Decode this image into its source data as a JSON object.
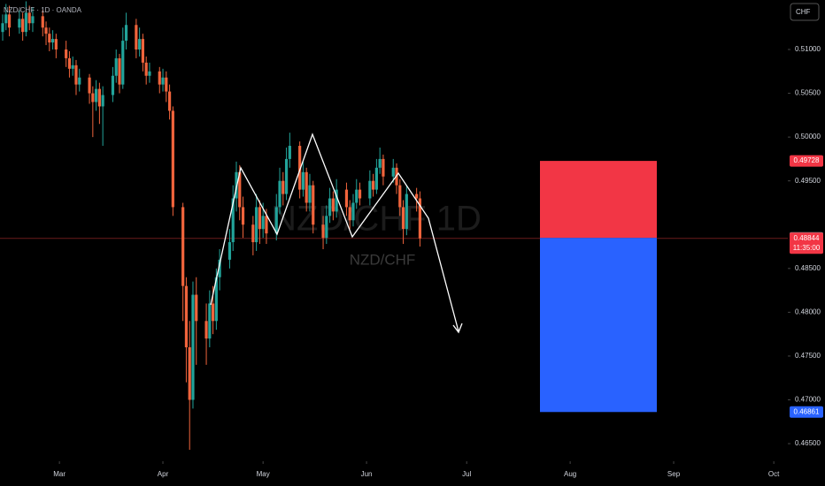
{
  "chart_data": {
    "type": "candlestick",
    "legend": "NZD/CHF · 1D · OANDA",
    "currency": "CHF",
    "watermark": "NZD/CHF 1D",
    "watermark_sub": "NZD/CHF",
    "up_color": "#22a39a",
    "down_color": "#f0643c",
    "xlim": [
      -17.8,
      218.2
    ],
    "xticks": [
      {
        "value": 0,
        "label": "Mar"
      },
      {
        "value": 31,
        "label": "Apr"
      },
      {
        "value": 61,
        "label": "May"
      },
      {
        "value": 92,
        "label": "Jun"
      },
      {
        "value": 122,
        "label": "Jul"
      },
      {
        "value": 153,
        "label": "Aug"
      },
      {
        "value": 184,
        "label": "Sep"
      },
      {
        "value": 214,
        "label": "Oct"
      }
    ],
    "ylim": [
      0.46319,
      0.51565
    ],
    "yticks": [
      {
        "value": 0.465,
        "label": "0.46500"
      },
      {
        "value": 0.47,
        "label": "0.47000"
      },
      {
        "value": 0.475,
        "label": "0.47500"
      },
      {
        "value": 0.48,
        "label": "0.48000"
      },
      {
        "value": 0.485,
        "label": "0.48500"
      },
      {
        "value": 0.495,
        "label": "0.49500"
      },
      {
        "value": 0.5,
        "label": "0.50000"
      },
      {
        "value": 0.505,
        "label": "0.50500"
      },
      {
        "value": 0.51,
        "label": "0.51000"
      }
    ],
    "grid": false,
    "x": [
      -17,
      -16,
      -15,
      -12,
      -11,
      -10,
      -9,
      -8,
      -5,
      -4,
      -3,
      -2,
      -1,
      2,
      3,
      4,
      5,
      6,
      9,
      10,
      11,
      12,
      13,
      16,
      17,
      18,
      19,
      20,
      23,
      24,
      25,
      26,
      27,
      30,
      31,
      32,
      33,
      34,
      37,
      38,
      39,
      40,
      41,
      44,
      45,
      46,
      47,
      48,
      51,
      52,
      53,
      54,
      55,
      58,
      59,
      60,
      61,
      62,
      65,
      66,
      67,
      68,
      69,
      72,
      73,
      74,
      75,
      76,
      79,
      80,
      81,
      82,
      83,
      86,
      87,
      88,
      89,
      90,
      93,
      94,
      95,
      96,
      97,
      100,
      101,
      102,
      103,
      104,
      107,
      108
    ],
    "open": [
      0.512,
      0.513,
      0.514,
      0.5125,
      0.5135,
      0.512,
      0.5142,
      0.513,
      0.5138,
      0.5125,
      0.5118,
      0.5108,
      0.5112,
      0.51,
      0.509,
      0.5078,
      0.5082,
      0.506,
      0.5068,
      0.505,
      0.504,
      0.5055,
      0.5035,
      0.5048,
      0.507,
      0.509,
      0.506,
      0.511,
      0.5128,
      0.51,
      0.5112,
      0.5085,
      0.507,
      0.5075,
      0.506,
      0.5068,
      0.5052,
      0.503,
      0.492,
      0.483,
      0.476,
      0.47,
      0.482,
      0.479,
      0.477,
      0.481,
      0.479,
      0.484,
      0.486,
      0.488,
      0.493,
      0.496,
      0.492,
      0.49,
      0.488,
      0.492,
      0.4895,
      0.491,
      0.489,
      0.492,
      0.495,
      0.4935,
      0.4975,
      0.499,
      0.494,
      0.496,
      0.4925,
      0.4945,
      0.49,
      0.4885,
      0.491,
      0.493,
      0.4915,
      0.494,
      0.492,
      0.4905,
      0.4925,
      0.494,
      0.493,
      0.495,
      0.494,
      0.4965,
      0.4975,
      0.4955,
      0.4965,
      0.4945,
      0.492,
      0.4895,
      0.4935,
      0.493
    ],
    "high": [
      0.514,
      0.5152,
      0.515,
      0.5145,
      0.5142,
      0.5155,
      0.515,
      0.5148,
      0.5145,
      0.5132,
      0.5125,
      0.5122,
      0.5118,
      0.511,
      0.5098,
      0.5092,
      0.5088,
      0.5078,
      0.5072,
      0.5058,
      0.5065,
      0.5062,
      0.5058,
      0.508,
      0.51,
      0.5095,
      0.5125,
      0.5142,
      0.5135,
      0.5125,
      0.5118,
      0.5092,
      0.5085,
      0.508,
      0.5078,
      0.5075,
      0.506,
      0.5035,
      0.4925,
      0.484,
      0.479,
      0.4835,
      0.484,
      0.481,
      0.4825,
      0.483,
      0.485,
      0.4872,
      0.4895,
      0.4945,
      0.4972,
      0.4968,
      0.4932,
      0.491,
      0.4935,
      0.4928,
      0.4925,
      0.4918,
      0.4935,
      0.4965,
      0.496,
      0.4988,
      0.5005,
      0.4995,
      0.4972,
      0.4965,
      0.4958,
      0.495,
      0.491,
      0.4922,
      0.4942,
      0.4938,
      0.4952,
      0.4948,
      0.4928,
      0.4935,
      0.4952,
      0.4948,
      0.4962,
      0.4958,
      0.4975,
      0.4988,
      0.498,
      0.4975,
      0.497,
      0.4952,
      0.4928,
      0.4945,
      0.4942,
      0.4938
    ],
    "low": [
      0.511,
      0.5122,
      0.5115,
      0.5118,
      0.511,
      0.5115,
      0.5122,
      0.512,
      0.5115,
      0.5105,
      0.5098,
      0.51,
      0.509,
      0.508,
      0.5068,
      0.507,
      0.5048,
      0.5052,
      0.5038,
      0.5,
      0.503,
      0.5015,
      0.499,
      0.504,
      0.5062,
      0.505,
      0.5055,
      0.51,
      0.509,
      0.5092,
      0.5075,
      0.506,
      0.5062,
      0.505,
      0.5052,
      0.504,
      0.502,
      0.491,
      0.479,
      0.472,
      0.4643,
      0.469,
      0.474,
      0.474,
      0.476,
      0.4775,
      0.478,
      0.4825,
      0.485,
      0.487,
      0.4915,
      0.4905,
      0.4885,
      0.4865,
      0.487,
      0.4878,
      0.4885,
      0.4878,
      0.4882,
      0.4912,
      0.4922,
      0.4928,
      0.4965,
      0.493,
      0.4932,
      0.4915,
      0.4915,
      0.489,
      0.4872,
      0.4878,
      0.4902,
      0.4905,
      0.4908,
      0.491,
      0.4895,
      0.4898,
      0.4918,
      0.4922,
      0.4922,
      0.4932,
      0.4935,
      0.4958,
      0.4945,
      0.4948,
      0.4935,
      0.491,
      0.4878,
      0.4888,
      0.4915,
      0.4875
    ],
    "close": [
      0.513,
      0.514,
      0.5125,
      0.5135,
      0.512,
      0.5142,
      0.513,
      0.5138,
      0.5125,
      0.5118,
      0.5108,
      0.5112,
      0.51,
      0.509,
      0.5078,
      0.5082,
      0.506,
      0.5068,
      0.505,
      0.504,
      0.5055,
      0.5035,
      0.5048,
      0.507,
      0.509,
      0.506,
      0.511,
      0.5128,
      0.51,
      0.5112,
      0.5085,
      0.507,
      0.5075,
      0.506,
      0.5068,
      0.5052,
      0.503,
      0.492,
      0.483,
      0.476,
      0.47,
      0.482,
      0.479,
      0.477,
      0.481,
      0.479,
      0.484,
      0.486,
      0.488,
      0.493,
      0.496,
      0.492,
      0.49,
      0.488,
      0.492,
      0.4895,
      0.491,
      0.489,
      0.492,
      0.495,
      0.4935,
      0.4975,
      0.499,
      0.494,
      0.496,
      0.4925,
      0.4945,
      0.49,
      0.4885,
      0.491,
      0.493,
      0.4915,
      0.494,
      0.492,
      0.4905,
      0.4925,
      0.494,
      0.493,
      0.495,
      0.494,
      0.4965,
      0.4975,
      0.4955,
      0.4965,
      0.4945,
      0.492,
      0.4895,
      0.4935,
      0.493,
      0.48844
    ],
    "last_price": 0.48844,
    "countdown": "11:35:00",
    "position": {
      "target": 0.49728,
      "entry": 0.48849,
      "stop": 0.46861,
      "target_color": "#f23645",
      "stop_color": "#2962ff"
    }
  }
}
